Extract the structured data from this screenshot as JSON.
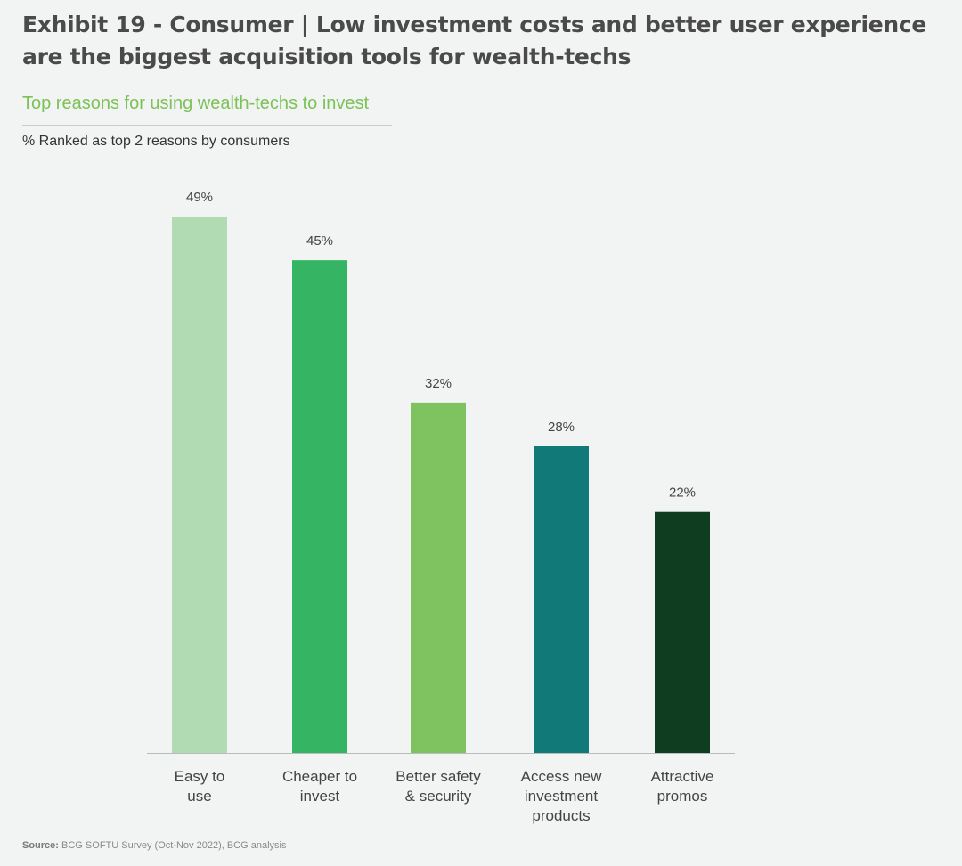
{
  "header": {
    "title": "Exhibit 19 - Consumer | Low investment costs and better user experience are the biggest acquisition tools for wealth-techs",
    "subtitle": "Top reasons for using wealth-techs to invest",
    "measure_label": "% Ranked as top 2 reasons by consumers"
  },
  "chart_data": {
    "type": "bar",
    "title": "Top reasons for using wealth-techs to invest",
    "ylabel": "% Ranked as top 2 reasons by consumers",
    "xlabel": "",
    "ylim": [
      0,
      49
    ],
    "grid": false,
    "legend": "none",
    "categories": [
      [
        "Easy to",
        "use"
      ],
      [
        "Cheaper to",
        "invest"
      ],
      [
        "Better safety",
        "& security"
      ],
      [
        "Access new",
        "investment",
        "products"
      ],
      [
        "Attractive",
        "promos"
      ]
    ],
    "values": [
      49,
      45,
      32,
      28,
      22
    ],
    "value_labels": [
      "49%",
      "45%",
      "32%",
      "28%",
      "22%"
    ],
    "colors": [
      "#b0dbb3",
      "#35b563",
      "#7fc360",
      "#117a78",
      "#0f3d20"
    ]
  },
  "footer": {
    "source_label": "Source:",
    "source_text": "BCG SOFTU Survey (Oct-Nov 2022), BCG analysis"
  }
}
